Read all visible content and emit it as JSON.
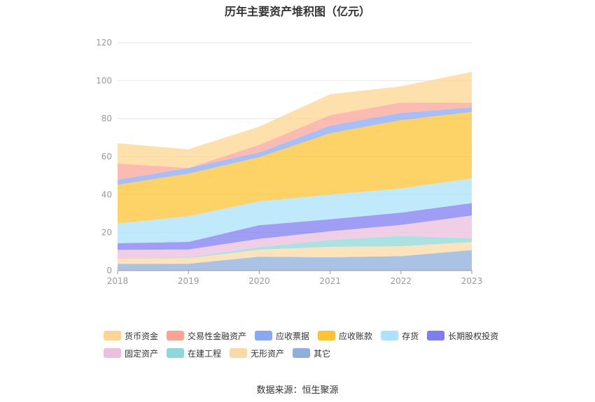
{
  "chart_data": {
    "type": "area",
    "stacked": true,
    "title": "历年主要资产堆积图（亿元）",
    "x": [
      "2018",
      "2019",
      "2020",
      "2021",
      "2022",
      "2023"
    ],
    "ylim": [
      0,
      120
    ],
    "yticks": [
      0,
      20,
      40,
      60,
      80,
      100,
      120
    ],
    "grid": true,
    "legend_position": "bottom",
    "series": [
      {
        "name": "其它",
        "color": "#8eaedb",
        "values": [
          3.5,
          3.6,
          7.3,
          7.0,
          7.6,
          10.8
        ]
      },
      {
        "name": "无形资产",
        "color": "#fbd9a6",
        "values": [
          2.8,
          2.9,
          3.7,
          5.5,
          5.2,
          4.2
        ]
      },
      {
        "name": "在建工程",
        "color": "#8ed8d8",
        "values": [
          0.3,
          0.4,
          1.3,
          3.6,
          5.4,
          2.0
        ]
      },
      {
        "name": "固定资产",
        "color": "#ebbfde",
        "values": [
          4.3,
          4.2,
          4.4,
          4.6,
          5.8,
          12.0
        ]
      },
      {
        "name": "长期股权投资",
        "color": "#7f7ef0",
        "values": [
          3.5,
          4.0,
          7.2,
          6.3,
          6.5,
          6.5
        ]
      },
      {
        "name": "存货",
        "color": "#ace2fb",
        "values": [
          10.3,
          13.5,
          12.5,
          13.0,
          12.7,
          13.0
        ]
      },
      {
        "name": "应收账款",
        "color": "#fcc435",
        "values": [
          20.5,
          22.4,
          23.3,
          32.3,
          36.0,
          35.0
        ]
      },
      {
        "name": "应收票据",
        "color": "#8aa9f5",
        "values": [
          2.6,
          3.0,
          2.5,
          4.0,
          3.8,
          2.4
        ]
      },
      {
        "name": "交易性金融资产",
        "color": "#f9a497",
        "values": [
          8.5,
          0.0,
          4.0,
          5.5,
          5.5,
          2.4
        ]
      },
      {
        "name": "货币资金",
        "color": "#fdd592",
        "values": [
          10.7,
          9.8,
          9.6,
          11.0,
          8.5,
          16.3
        ]
      }
    ]
  },
  "legend_items": [
    {
      "label": "货币资金",
      "color": "#fdd592"
    },
    {
      "label": "交易性金融资产",
      "color": "#f9a497"
    },
    {
      "label": "应收票据",
      "color": "#8aa9f5"
    },
    {
      "label": "应收账款",
      "color": "#fcc435"
    },
    {
      "label": "存货",
      "color": "#ace2fb"
    },
    {
      "label": "长期股权投资",
      "color": "#7f7ef0"
    },
    {
      "label": "固定资产",
      "color": "#ebbfde"
    },
    {
      "label": "在建工程",
      "color": "#8ed8d8"
    },
    {
      "label": "无形资产",
      "color": "#fbd9a6"
    },
    {
      "label": "其它",
      "color": "#8eaedb"
    }
  ],
  "source": "数据来源：恒生聚源"
}
